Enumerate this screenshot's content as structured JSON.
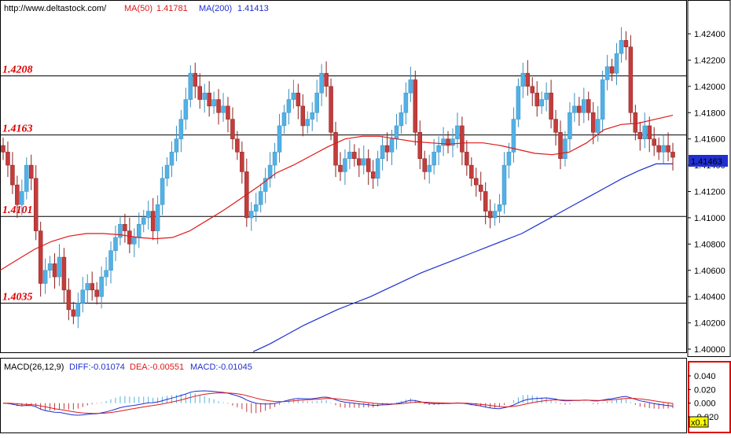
{
  "header": {
    "url": "http://www.deltastock.com/",
    "ma50_label": "MA(50)",
    "ma50_value": "1.41781",
    "ma200_label": "MA(200)",
    "ma200_value": "1.41413"
  },
  "macd_header": {
    "name": "MACD(26,12,9)",
    "diff": "DIFF:-0.01074",
    "dea": "DEA:-0.00551",
    "macd": "MACD:-0.01045"
  },
  "current_price": "1.41463",
  "zoom_label": "x0.1",
  "levels": [
    {
      "label": "1.4208",
      "value": 1.4208
    },
    {
      "label": "1.4163",
      "value": 1.4163
    },
    {
      "label": "1.4101",
      "value": 1.4101
    },
    {
      "label": "1.4035",
      "value": 1.4035
    }
  ],
  "colors": {
    "bull": "#52b1e6",
    "bear": "#c43c3c",
    "ma50": "#e01818",
    "ma200": "#1f2fd0",
    "levels_text": "#e00000",
    "macd_frame": "#e00000"
  },
  "chart_data": [
    {
      "type": "candlestick",
      "ylim": [
        1.399,
        1.425
      ],
      "y_ticks": [
        "1.42400",
        "1.42200",
        "1.42000",
        "1.41800",
        "1.41600",
        "1.41400",
        "1.41200",
        "1.41000",
        "1.40800",
        "1.40600",
        "1.40400",
        "1.40200",
        "1.40000"
      ],
      "close": [
        1.415,
        1.414,
        1.4125,
        1.411,
        1.412,
        1.414,
        1.413,
        1.409,
        1.405,
        1.406,
        1.4065,
        1.4055,
        1.407,
        1.4045,
        1.403,
        1.4025,
        1.4035,
        1.4045,
        1.405,
        1.4045,
        1.404,
        1.4055,
        1.406,
        1.4075,
        1.4085,
        1.4095,
        1.409,
        1.408,
        1.4085,
        1.4095,
        1.41,
        1.4105,
        1.409,
        1.411,
        1.413,
        1.414,
        1.415,
        1.416,
        1.4175,
        1.419,
        1.421,
        1.42,
        1.419,
        1.4195,
        1.4185,
        1.419,
        1.418,
        1.4185,
        1.4175,
        1.416,
        1.415,
        1.4135,
        1.41,
        1.4105,
        1.411,
        1.412,
        1.413,
        1.414,
        1.415,
        1.417,
        1.418,
        1.419,
        1.4195,
        1.4185,
        1.417,
        1.4175,
        1.418,
        1.4195,
        1.421,
        1.42,
        1.4165,
        1.414,
        1.4135,
        1.4145,
        1.415,
        1.4145,
        1.414,
        1.4145,
        1.4135,
        1.413,
        1.4145,
        1.4155,
        1.415,
        1.416,
        1.417,
        1.418,
        1.4195,
        1.4205,
        1.4165,
        1.4145,
        1.4135,
        1.414,
        1.415,
        1.4155,
        1.416,
        1.4155,
        1.416,
        1.417,
        1.415,
        1.414,
        1.413,
        1.4125,
        1.412,
        1.4105,
        1.41,
        1.4105,
        1.411,
        1.414,
        1.415,
        1.4175,
        1.42,
        1.421,
        1.42,
        1.4195,
        1.4185,
        1.419,
        1.4195,
        1.4175,
        1.4165,
        1.4145,
        1.416,
        1.418,
        1.4185,
        1.418,
        1.419,
        1.418,
        1.4165,
        1.4175,
        1.4205,
        1.4215,
        1.421,
        1.4225,
        1.4235,
        1.423,
        1.418,
        1.4165,
        1.416,
        1.417,
        1.416,
        1.4155,
        1.415,
        1.4155,
        1.415,
        1.4146
      ],
      "ma50": [
        1.406,
        1.4068,
        1.4076,
        1.4082,
        1.4086,
        1.4088,
        1.4088,
        1.4087,
        1.4085,
        1.4084,
        1.4085,
        1.409,
        1.4098,
        1.4106,
        1.4115,
        1.4124,
        1.4134,
        1.414,
        1.4147,
        1.4154,
        1.416,
        1.4162,
        1.4162,
        1.416,
        1.4158,
        1.4157,
        1.4156,
        1.4157,
        1.4157,
        1.4155,
        1.4152,
        1.4149,
        1.4148,
        1.415,
        1.4157,
        1.4167,
        1.4171,
        1.4172,
        1.4175,
        1.4178
      ],
      "ma50_x_step": 22,
      "ma200": [
        1.3998,
        1.4004,
        1.4011,
        1.4018,
        1.4024,
        1.403,
        1.4035,
        1.404,
        1.4046,
        1.4052,
        1.4058,
        1.4063,
        1.4068,
        1.4073,
        1.4078,
        1.4083,
        1.4088,
        1.4095,
        1.4102,
        1.4109,
        1.4116,
        1.4123,
        1.413,
        1.4136,
        1.4141,
        1.4141
      ],
      "ma200_start_index": 90,
      "ma200_x_step": 5
    },
    {
      "type": "macd",
      "ylim": [
        -0.03,
        0.048
      ],
      "y_ticks": [
        "0.040",
        "0.020",
        "0.000",
        "-0.020"
      ]
    }
  ]
}
